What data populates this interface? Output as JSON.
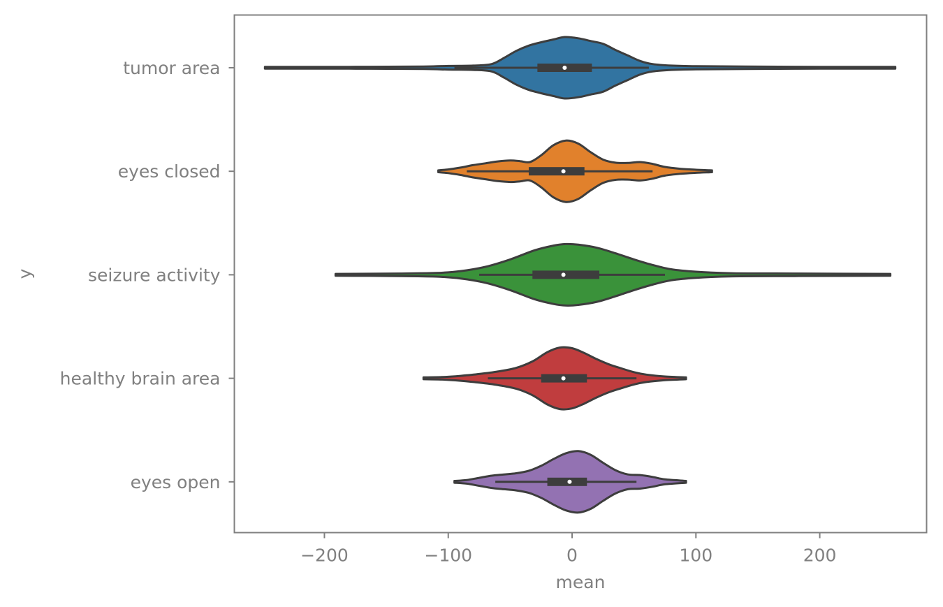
{
  "chart_data": {
    "type": "violin",
    "orientation": "horizontal",
    "xlabel": "mean",
    "ylabel": "y",
    "xlim": [
      -275,
      286
    ],
    "xticks": [
      -200,
      -100,
      0,
      100,
      200
    ],
    "xtick_labels": [
      "−200",
      "−100",
      "0",
      "100",
      "200"
    ],
    "grid": false,
    "categories": [
      "tumor area",
      "eyes closed",
      "seizure activity",
      "healthy brain area",
      "eyes open"
    ],
    "series": [
      {
        "category": "tumor area",
        "color": "#3274a1",
        "min": -248,
        "max": 261,
        "q1": -28,
        "median": -6,
        "q3": 16,
        "whisker_low": -95,
        "whisker_high": 62,
        "density": [
          [
            -248,
            0.03
          ],
          [
            -180,
            0.03
          ],
          [
            -120,
            0.04
          ],
          [
            -100,
            0.06
          ],
          [
            -80,
            0.07
          ],
          [
            -65,
            0.12
          ],
          [
            -55,
            0.32
          ],
          [
            -45,
            0.55
          ],
          [
            -35,
            0.72
          ],
          [
            -25,
            0.83
          ],
          [
            -15,
            0.92
          ],
          [
            -6,
            1.0
          ],
          [
            5,
            0.96
          ],
          [
            15,
            0.87
          ],
          [
            25,
            0.78
          ],
          [
            35,
            0.58
          ],
          [
            45,
            0.4
          ],
          [
            55,
            0.22
          ],
          [
            65,
            0.12
          ],
          [
            80,
            0.07
          ],
          [
            100,
            0.05
          ],
          [
            140,
            0.04
          ],
          [
            200,
            0.03
          ],
          [
            261,
            0.03
          ]
        ]
      },
      {
        "category": "eyes closed",
        "color": "#e1812c",
        "min": -108,
        "max": 113,
        "q1": -35,
        "median": -7,
        "q3": 10,
        "whisker_low": -85,
        "whisker_high": 65,
        "density": [
          [
            -108,
            0.03
          ],
          [
            -100,
            0.06
          ],
          [
            -90,
            0.12
          ],
          [
            -80,
            0.2
          ],
          [
            -70,
            0.26
          ],
          [
            -60,
            0.32
          ],
          [
            -50,
            0.35
          ],
          [
            -42,
            0.33
          ],
          [
            -34,
            0.3
          ],
          [
            -25,
            0.52
          ],
          [
            -15,
            0.85
          ],
          [
            -5,
            1.0
          ],
          [
            5,
            0.9
          ],
          [
            15,
            0.62
          ],
          [
            25,
            0.38
          ],
          [
            35,
            0.28
          ],
          [
            45,
            0.27
          ],
          [
            55,
            0.3
          ],
          [
            65,
            0.24
          ],
          [
            75,
            0.14
          ],
          [
            88,
            0.08
          ],
          [
            100,
            0.05
          ],
          [
            113,
            0.03
          ]
        ]
      },
      {
        "category": "seizure activity",
        "color": "#3a923a",
        "min": -191,
        "max": 257,
        "q1": -32,
        "median": -7,
        "q3": 22,
        "whisker_low": -75,
        "whisker_high": 75,
        "density": [
          [
            -191,
            0.03
          ],
          [
            -140,
            0.04
          ],
          [
            -110,
            0.06
          ],
          [
            -90,
            0.12
          ],
          [
            -70,
            0.26
          ],
          [
            -50,
            0.5
          ],
          [
            -30,
            0.8
          ],
          [
            -15,
            0.95
          ],
          [
            -5,
            1.0
          ],
          [
            5,
            0.98
          ],
          [
            20,
            0.88
          ],
          [
            35,
            0.7
          ],
          [
            50,
            0.5
          ],
          [
            65,
            0.32
          ],
          [
            80,
            0.18
          ],
          [
            100,
            0.1
          ],
          [
            130,
            0.05
          ],
          [
            180,
            0.04
          ],
          [
            257,
            0.03
          ]
        ]
      },
      {
        "category": "healthy brain area",
        "color": "#c03d3e",
        "min": -120,
        "max": 92,
        "q1": -25,
        "median": -7,
        "q3": 12,
        "whisker_low": -68,
        "whisker_high": 52,
        "density": [
          [
            -120,
            0.03
          ],
          [
            -105,
            0.04
          ],
          [
            -90,
            0.08
          ],
          [
            -75,
            0.14
          ],
          [
            -60,
            0.22
          ],
          [
            -45,
            0.34
          ],
          [
            -32,
            0.55
          ],
          [
            -20,
            0.85
          ],
          [
            -10,
            1.0
          ],
          [
            0,
            0.98
          ],
          [
            10,
            0.82
          ],
          [
            20,
            0.62
          ],
          [
            30,
            0.45
          ],
          [
            40,
            0.32
          ],
          [
            50,
            0.2
          ],
          [
            60,
            0.12
          ],
          [
            75,
            0.06
          ],
          [
            92,
            0.03
          ]
        ]
      },
      {
        "category": "eyes open",
        "color": "#9372b2",
        "min": -95,
        "max": 92,
        "q1": -20,
        "median": -2,
        "q3": 12,
        "whisker_low": -62,
        "whisker_high": 52,
        "density": [
          [
            -95,
            0.03
          ],
          [
            -85,
            0.06
          ],
          [
            -75,
            0.13
          ],
          [
            -65,
            0.2
          ],
          [
            -55,
            0.24
          ],
          [
            -45,
            0.28
          ],
          [
            -35,
            0.36
          ],
          [
            -25,
            0.52
          ],
          [
            -15,
            0.74
          ],
          [
            -5,
            0.93
          ],
          [
            5,
            1.0
          ],
          [
            15,
            0.88
          ],
          [
            25,
            0.62
          ],
          [
            35,
            0.38
          ],
          [
            45,
            0.24
          ],
          [
            55,
            0.22
          ],
          [
            65,
            0.16
          ],
          [
            75,
            0.08
          ],
          [
            92,
            0.03
          ]
        ]
      }
    ]
  }
}
